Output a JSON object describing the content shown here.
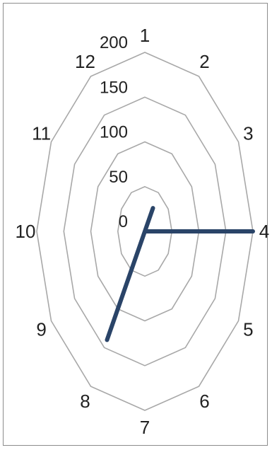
{
  "chart_data": {
    "type": "radar",
    "categories": [
      "1",
      "2",
      "3",
      "4",
      "5",
      "6",
      "7",
      "8",
      "9",
      "10",
      "11",
      "12"
    ],
    "series": [
      {
        "values": [
          0,
          30,
          0,
          200,
          0,
          0,
          0,
          140,
          0,
          0,
          0,
          0
        ],
        "color": "#2a4468"
      }
    ],
    "rlim": [
      0,
      200
    ],
    "rticks": [
      0,
      50,
      100,
      150,
      200
    ],
    "tick_labels": [
      "0",
      "50",
      "100",
      "150",
      "200"
    ],
    "grid": true,
    "grid_color": "#a8a8a8"
  }
}
